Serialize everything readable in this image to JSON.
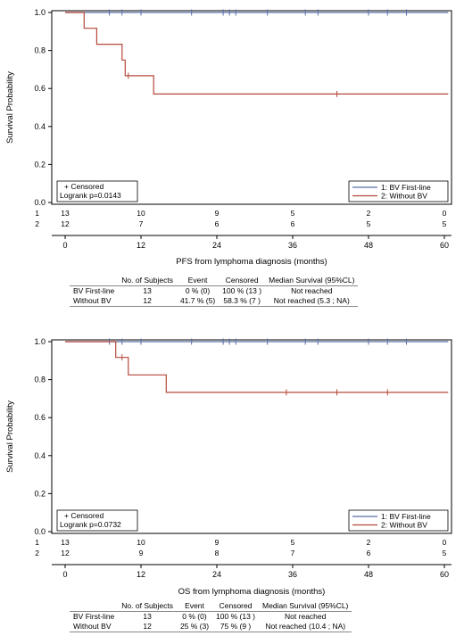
{
  "chart_data": [
    {
      "type": "line",
      "ylabel": "Survival Probability",
      "xlabel": "PFS from lymphoma diagnosis (months)",
      "xlim": [
        0,
        60
      ],
      "ylim": [
        0,
        1.0
      ],
      "xticks": [
        0,
        12,
        24,
        36,
        48,
        60
      ],
      "yticks": [
        0.0,
        0.2,
        0.4,
        0.6,
        0.8,
        1.0
      ],
      "ytick_labels": [
        "0.0",
        "0.2",
        "0.4",
        "0.6",
        "0.8",
        "1.0"
      ],
      "series": [
        {
          "name": "1: BV First-line",
          "color": "#5b6ea8",
          "steps": [
            [
              0,
              1.0
            ],
            [
              61,
              1.0
            ]
          ],
          "censored": [
            [
              7,
              1.0
            ],
            [
              9,
              1.0
            ],
            [
              12,
              1.0
            ],
            [
              20,
              1.0
            ],
            [
              25,
              1.0
            ],
            [
              26,
              1.0
            ],
            [
              27,
              1.0
            ],
            [
              32,
              1.0
            ],
            [
              38,
              1.0
            ],
            [
              40,
              1.0
            ],
            [
              48,
              1.0
            ],
            [
              51,
              1.0
            ],
            [
              54,
              1.0
            ]
          ]
        },
        {
          "name": "2: Without BV",
          "color": "#b5483a",
          "steps": [
            [
              0,
              1.0
            ],
            [
              3,
              1.0
            ],
            [
              3,
              0.917
            ],
            [
              5,
              0.917
            ],
            [
              5,
              0.833
            ],
            [
              9,
              0.833
            ],
            [
              9,
              0.75
            ],
            [
              9.5,
              0.75
            ],
            [
              9.5,
              0.667
            ],
            [
              14,
              0.667
            ],
            [
              14,
              0.571
            ],
            [
              61,
              0.571
            ]
          ],
          "censored": [
            [
              10,
              0.667
            ],
            [
              43,
              0.571
            ]
          ]
        }
      ],
      "censored_label": "+ Censored",
      "logrank": "Logrank p=0.0143",
      "legend": [
        "1: BV First-line",
        "2: Without BV"
      ],
      "legend_position": "bottom-right",
      "at_risk": {
        "labels": [
          "1",
          "2"
        ],
        "rows": [
          [
            "13",
            "10",
            "9",
            "5",
            "2",
            "0"
          ],
          [
            "12",
            "7",
            "6",
            "6",
            "5",
            "5"
          ]
        ]
      },
      "table": {
        "headers": [
          "",
          "No. of Subjects",
          "Event",
          "Censored",
          "Median Survival (95%CL)"
        ],
        "rows": [
          [
            "BV First-line",
            "13",
            "0 % (0)",
            "100 % (13 )",
            "Not reached"
          ],
          [
            "Without BV",
            "12",
            "41.7 % (5)",
            "58.3 % (7 )",
            "Not reached (5.3 ; NA)"
          ]
        ]
      }
    },
    {
      "type": "line",
      "ylabel": "Survival Probability",
      "xlabel": "OS from lymphoma diagnosis (months)",
      "xlim": [
        0,
        60
      ],
      "ylim": [
        0,
        1.0
      ],
      "xticks": [
        0,
        12,
        24,
        36,
        48,
        60
      ],
      "yticks": [
        0.0,
        0.2,
        0.4,
        0.6,
        0.8,
        1.0
      ],
      "ytick_labels": [
        "0.0",
        "0.2",
        "0.4",
        "0.6",
        "0.8",
        "1.0"
      ],
      "series": [
        {
          "name": "1: BV First-line",
          "color": "#5b6ea8",
          "steps": [
            [
              0,
              1.0
            ],
            [
              61,
              1.0
            ]
          ],
          "censored": [
            [
              7,
              1.0
            ],
            [
              9,
              1.0
            ],
            [
              12,
              1.0
            ],
            [
              20,
              1.0
            ],
            [
              25,
              1.0
            ],
            [
              26,
              1.0
            ],
            [
              27,
              1.0
            ],
            [
              32,
              1.0
            ],
            [
              38,
              1.0
            ],
            [
              40,
              1.0
            ],
            [
              48,
              1.0
            ],
            [
              51,
              1.0
            ],
            [
              54,
              1.0
            ]
          ]
        },
        {
          "name": "2: Without BV",
          "color": "#b5483a",
          "steps": [
            [
              0,
              1.0
            ],
            [
              8,
              1.0
            ],
            [
              8,
              0.917
            ],
            [
              10,
              0.917
            ],
            [
              10,
              0.825
            ],
            [
              16,
              0.825
            ],
            [
              16,
              0.733
            ],
            [
              61,
              0.733
            ]
          ],
          "censored": [
            [
              9,
              0.917
            ],
            [
              35,
              0.733
            ],
            [
              43,
              0.733
            ],
            [
              51,
              0.733
            ]
          ]
        }
      ],
      "censored_label": "+ Censored",
      "logrank": "Logrank p=0.0732",
      "legend": [
        "1: BV First-line",
        "2: Without BV"
      ],
      "legend_position": "bottom-right",
      "at_risk": {
        "labels": [
          "1",
          "2"
        ],
        "rows": [
          [
            "13",
            "10",
            "9",
            "5",
            "2",
            "0"
          ],
          [
            "12",
            "9",
            "8",
            "7",
            "6",
            "5"
          ]
        ]
      },
      "table": {
        "headers": [
          "",
          "No. of Subjects",
          "Event",
          "Censored",
          "Median Survival (95%CL)"
        ],
        "rows": [
          [
            "BV First-line",
            "13",
            "0 % (0)",
            "100 % (13 )",
            "Not reached"
          ],
          [
            "Without BV",
            "12",
            "25 % (3)",
            "75 % (9 )",
            "Not reached (10.4 ; NA)"
          ]
        ]
      }
    }
  ]
}
